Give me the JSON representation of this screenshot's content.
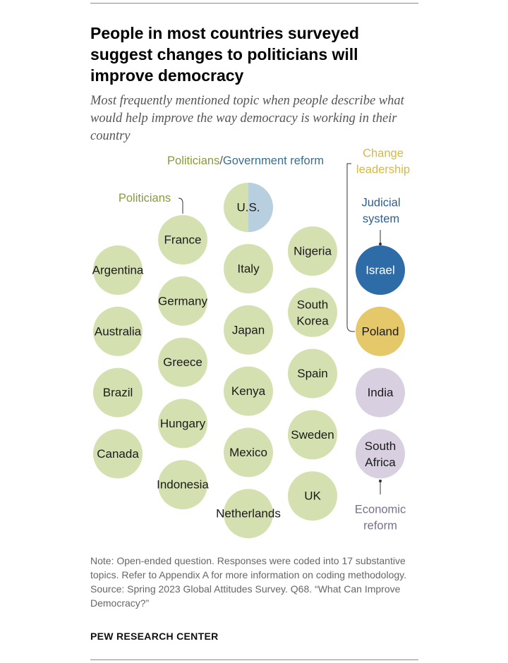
{
  "header": {
    "title": "People in most countries surveyed suggest changes to politicians will improve democracy",
    "subtitle": "Most frequently mentioned topic when people describe what would help improve the way democracy is working in their country"
  },
  "colors": {
    "politicians": "#d4e0b0",
    "government_reform": "#b8cfdf",
    "judicial_system": "#2e6ca8",
    "change_leadership": "#e5c86a",
    "economic_reform": "#d8cfe0",
    "label_politicians": "#8a9a3c",
    "label_government": "#3a6e8f",
    "label_judicial": "#2e5f8c",
    "label_leadership": "#d6b84a",
    "label_economic": "#7a6e8a"
  },
  "chart_data": {
    "type": "bubble-grid",
    "categories": [
      {
        "key": "politicians",
        "label": "Politicians",
        "countries": [
          "Argentina",
          "Australia",
          "Brazil",
          "Canada",
          "France",
          "Germany",
          "Greece",
          "Hungary",
          "Indonesia",
          "Italy",
          "Japan",
          "Kenya",
          "Mexico",
          "Netherlands",
          "Nigeria",
          "South Korea",
          "Spain",
          "Sweden",
          "UK"
        ]
      },
      {
        "key": "politicians_government_reform",
        "label_part1": "Politicians",
        "label_sep": "/",
        "label_part2": "Government reform",
        "countries": [
          "U.S."
        ]
      },
      {
        "key": "judicial_system",
        "label": "Judicial system",
        "countries": [
          "Israel"
        ]
      },
      {
        "key": "change_leadership",
        "label": "Change leadership",
        "countries": [
          "Poland"
        ]
      },
      {
        "key": "economic_reform",
        "label": "Economic reform",
        "countries": [
          "India",
          "South Africa"
        ]
      }
    ],
    "columns": [
      {
        "fill": "politicians",
        "countries": [
          "Argentina",
          "Australia",
          "Brazil",
          "Canada"
        ]
      },
      {
        "fill": "politicians",
        "countries": [
          "France",
          "Germany",
          "Greece",
          "Hungary",
          "Indonesia"
        ]
      },
      {
        "fill": "split",
        "countries": [
          "U.S."
        ]
      },
      {
        "fill": "politicians",
        "countries": [
          "Italy",
          "Japan",
          "Kenya",
          "Mexico",
          "Netherlands"
        ]
      },
      {
        "fill": "politicians",
        "countries": [
          "Nigeria",
          "South Korea",
          "Spain",
          "Sweden",
          "UK"
        ]
      },
      {
        "fill": "mixed",
        "countries": [
          "Israel",
          "Poland",
          "India",
          "South Africa"
        ],
        "fills": [
          "judicial_system",
          "change_leadership",
          "economic_reform",
          "economic_reform"
        ]
      }
    ]
  },
  "footer": {
    "note": "Note: Open-ended question. Responses were coded into 17 substantive topics. Refer to Appendix A for more information on coding methodology.",
    "source": "Source: Spring 2023 Global Attitudes Survey. Q68. “What Can Improve Democracy?”",
    "brand": "PEW RESEARCH CENTER"
  }
}
